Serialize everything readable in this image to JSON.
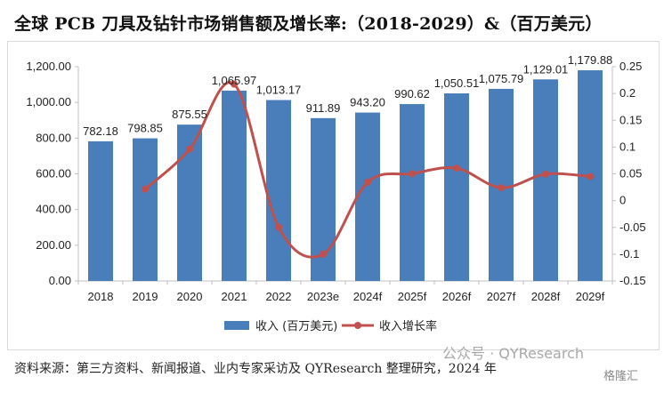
{
  "title": "全球 PCB 刀具及钻针市场销售额及增长率:（2018-2029）&（百万美元）",
  "source": "资料来源：第三方资料、新闻报道、业内专家采访及 QYResearch 整理研究，2024 年",
  "watermark": "公众号 · QYResearch",
  "logo": "格隆汇",
  "colors": {
    "bar": "#4a7ebb",
    "line": "#c0504d"
  },
  "chart_data": {
    "type": "bar+line",
    "categories": [
      "2018",
      "2019",
      "2020",
      "2021",
      "2022",
      "2023e",
      "2024f",
      "2025f",
      "2026f",
      "2027f",
      "2028f",
      "2029f"
    ],
    "series": [
      {
        "name": "收入 (百万美元)",
        "type": "bar",
        "axis": "left",
        "values": [
          782.18,
          798.85,
          875.55,
          1065.97,
          1013.17,
          911.89,
          943.2,
          990.62,
          1050.51,
          1075.79,
          1129.01,
          1179.88
        ],
        "labels": [
          "782.18",
          "798.85",
          "875.55",
          "1,065.97",
          "1,013.17",
          "911.89",
          "943.20",
          "990.62",
          "1,050.51",
          "1,075.79",
          "1,129.01",
          "1,179.88"
        ]
      },
      {
        "name": "收入增长率",
        "type": "line",
        "axis": "right",
        "values": [
          null,
          0.0213,
          0.096,
          0.2175,
          -0.0495,
          -0.1,
          0.0343,
          0.0503,
          0.0605,
          0.0241,
          0.0495,
          0.0451
        ]
      }
    ],
    "y_left": {
      "min": 0,
      "max": 1200,
      "ticks": [
        "0.00",
        "200.00",
        "400.00",
        "600.00",
        "800.00",
        "1,000.00",
        "1,200.00"
      ]
    },
    "y_right": {
      "min": -0.15,
      "max": 0.25,
      "ticks": [
        "-0.15",
        "-0.1",
        "-0.05",
        "0",
        "0.05",
        "0.1",
        "0.15",
        "0.2",
        "0.25"
      ]
    },
    "legend_position": "bottom",
    "grid": false
  }
}
